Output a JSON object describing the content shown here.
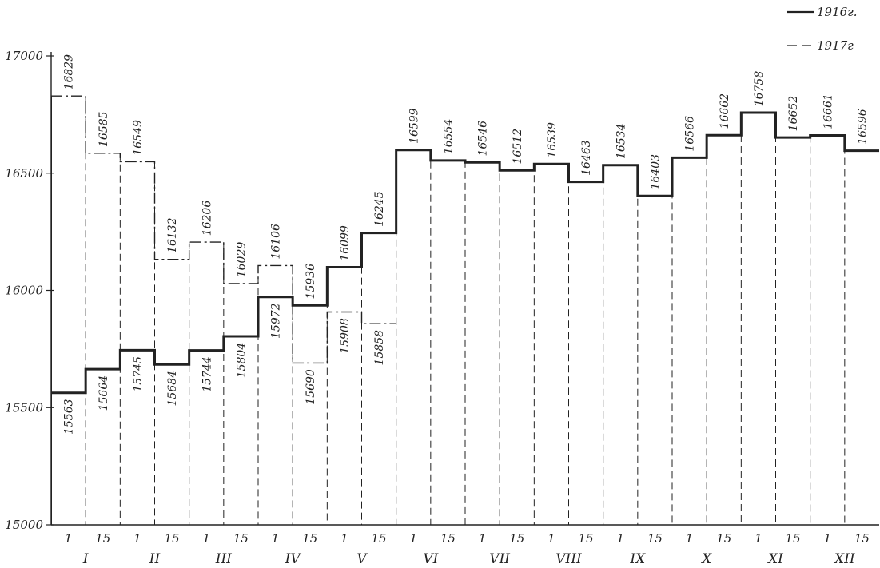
{
  "chart_data": {
    "type": "line",
    "title": "",
    "xlabel": "",
    "ylabel": "",
    "ylim": [
      15000,
      17000
    ],
    "yticks": [
      "15000",
      "15500",
      "16000",
      "16500",
      "17000"
    ],
    "x_day_labels": [
      "1",
      "15",
      "1",
      "15",
      "1",
      "15",
      "1",
      "15",
      "1",
      "15",
      "1",
      "15",
      "1",
      "15",
      "1",
      "15",
      "1",
      "15",
      "1",
      "15",
      "1",
      "15",
      "1",
      "15"
    ],
    "months": [
      "I",
      "II",
      "III",
      "IV",
      "V",
      "VI",
      "VII",
      "VIII",
      "IX",
      "X",
      "XI",
      "XII"
    ],
    "legend_position": "top-right",
    "series": [
      {
        "name": "1916г.",
        "style": "solid-bold",
        "values": [
          15563,
          15664,
          15745,
          15684,
          15744,
          15804,
          15972,
          15936,
          16099,
          16245,
          16599,
          16554,
          16546,
          16512,
          16539,
          16463,
          16534,
          16403,
          16566,
          16662,
          16758,
          16652,
          16661,
          16596
        ],
        "labels": [
          "15563",
          "15664",
          "15745",
          "15684",
          "15744",
          "15804",
          "15972",
          "15936",
          "16099",
          "16245",
          "16599",
          "16554",
          "16546",
          "16512",
          "16539",
          "16463",
          "16534",
          "16403",
          "16566",
          "16662",
          "16758",
          "16652",
          "16661",
          "16596"
        ]
      },
      {
        "name": "1917г.",
        "style": "dashed",
        "values": [
          16829,
          16585,
          16549,
          16132,
          16206,
          16029,
          16106,
          15690,
          15908,
          15858
        ],
        "labels": [
          "16829",
          "16585",
          "16549",
          "16132",
          "16206",
          "16029",
          "16106",
          "15690",
          "15908",
          "15858"
        ]
      }
    ]
  },
  "legend": {
    "items": [
      {
        "label": "1916г."
      },
      {
        "label": "1917г"
      }
    ]
  },
  "colors": {
    "ink": "#222222"
  }
}
